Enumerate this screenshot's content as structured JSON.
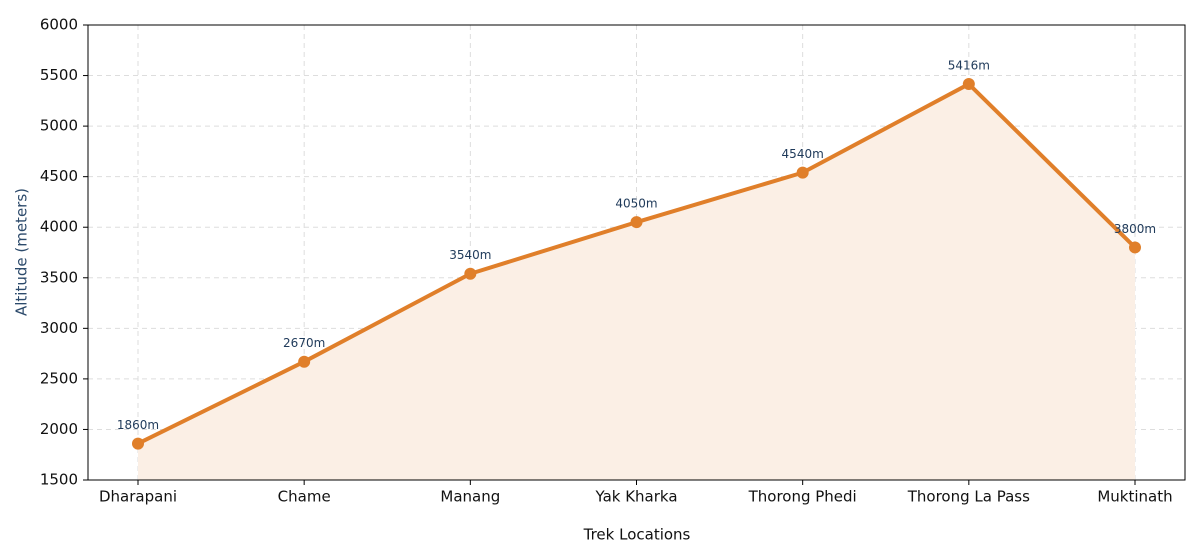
{
  "chart_data": {
    "type": "line",
    "x_label": "Trek Locations",
    "y_label": "Altitude (meters)",
    "categories": [
      "Dharapani",
      "Chame",
      "Manang",
      "Yak Kharka",
      "Thorong Phedi",
      "Thorong La Pass",
      "Muktinath"
    ],
    "values": [
      1860,
      2670,
      3540,
      4050,
      4540,
      5416,
      3800
    ],
    "value_labels": [
      "1860m",
      "2670m",
      "3540m",
      "4050m",
      "4540m",
      "5416m",
      "3800m"
    ],
    "color": "#e07f2a",
    "fill": "#fbefe5",
    "ylim": [
      1500,
      6000
    ],
    "yticks": [
      1500,
      2000,
      2500,
      3000,
      3500,
      4000,
      4500,
      5000,
      5500,
      6000
    ],
    "grid": true
  }
}
